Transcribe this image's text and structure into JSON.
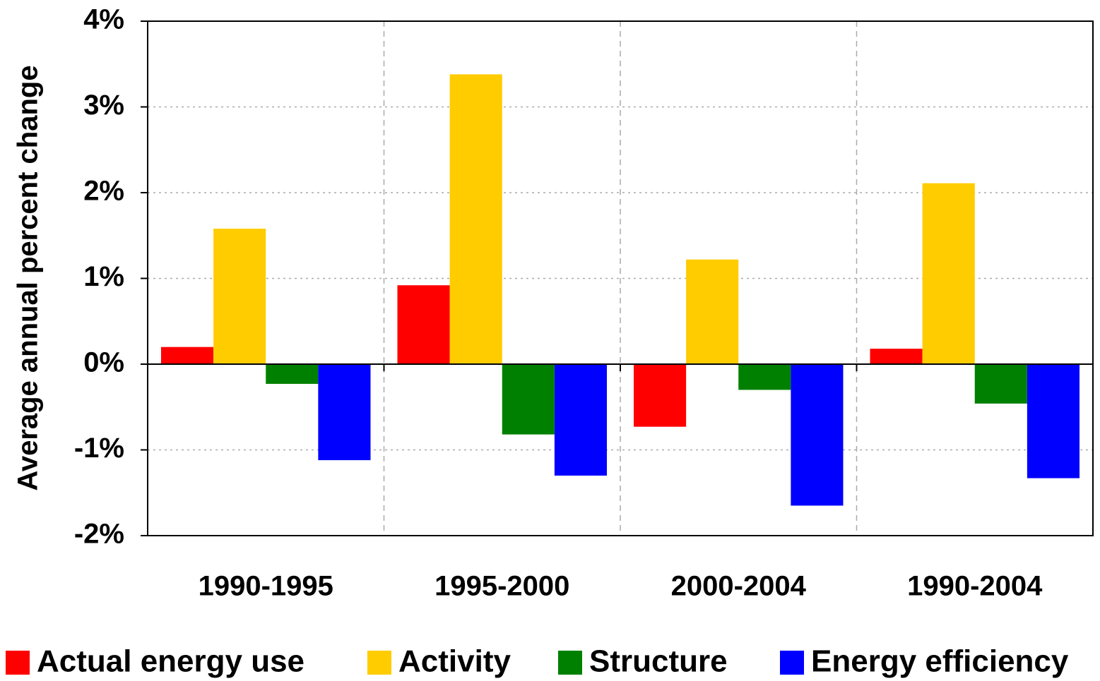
{
  "chart_data": {
    "type": "bar",
    "y_label": "Average annual percent change",
    "categories": [
      "1990-1995",
      "1995-2000",
      "2000-2004",
      "1990-2004"
    ],
    "series": [
      {
        "name": "Actual energy use",
        "color": "#ff0000",
        "values": [
          0.2,
          0.92,
          -0.73,
          0.18
        ]
      },
      {
        "name": "Activity",
        "color": "#ffcc00",
        "values": [
          1.58,
          3.38,
          1.22,
          2.11
        ]
      },
      {
        "name": "Structure",
        "color": "#008000",
        "values": [
          -0.23,
          -0.82,
          -0.3,
          -0.46
        ]
      },
      {
        "name": "Energy efficiency",
        "color": "#0000ff",
        "values": [
          -1.12,
          -1.3,
          -1.65,
          -1.33
        ]
      }
    ],
    "ylim": [
      -2,
      4
    ],
    "yticks": [
      {
        "value": -2,
        "label": "-2%"
      },
      {
        "value": -1,
        "label": "-1%"
      },
      {
        "value": 0,
        "label": "0%"
      },
      {
        "value": 1,
        "label": "1%"
      },
      {
        "value": 2,
        "label": "2%"
      },
      {
        "value": 3,
        "label": "3%"
      },
      {
        "value": 4,
        "label": "4%"
      }
    ],
    "grid": true,
    "legend": "bottom"
  }
}
